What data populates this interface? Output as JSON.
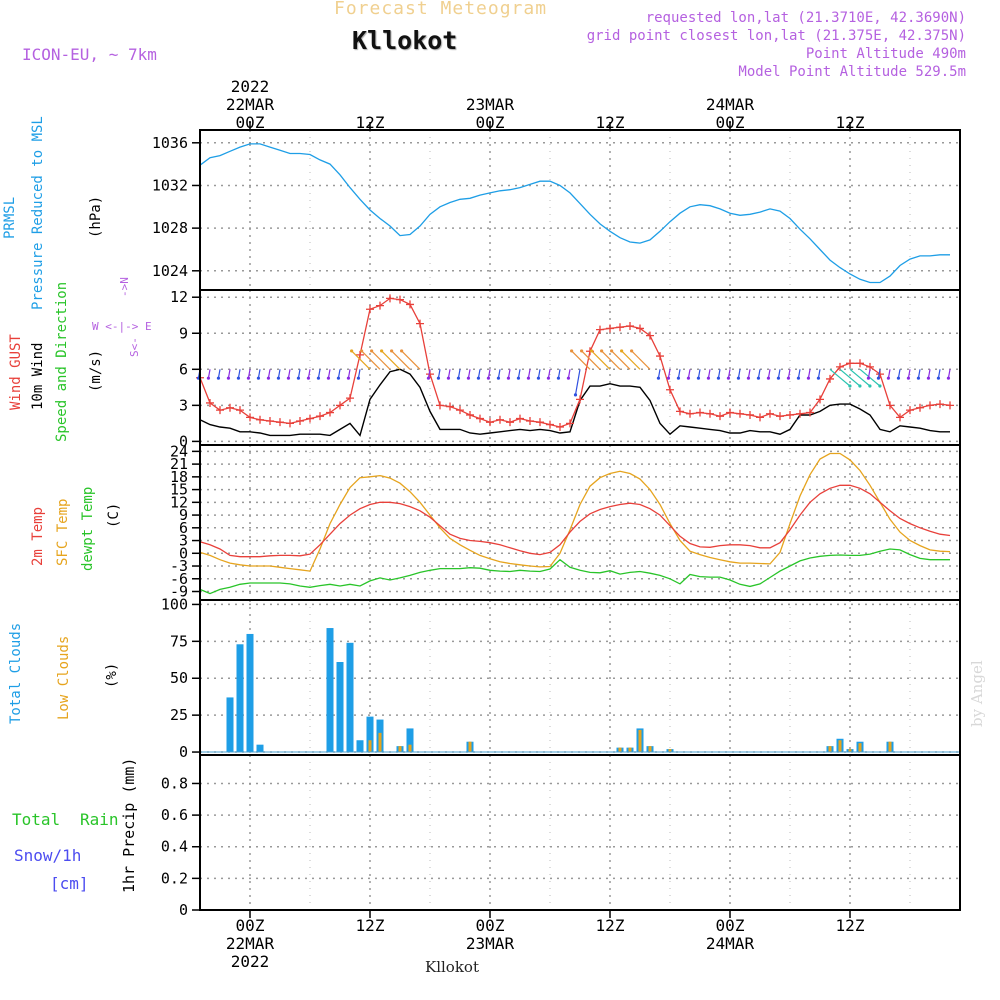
{
  "header": {
    "top_title": "Forecast Meteogram",
    "location": "Kllokot",
    "model": "ICON-EU, ~ 7km",
    "requested": "requested lon,lat (21.3710E, 42.3690N)",
    "grid_point": "grid point closest lon,lat (21.375E, 42.375N)",
    "point_altitude": "Point Altitude 490m",
    "model_altitude": "Model Point Altitude 529.5m",
    "bottom_location": "Kllokot",
    "credit": "by Angel"
  },
  "time_axis": {
    "top_labels": [
      {
        "hour": 0,
        "lines": [
          "2022",
          "22MAR",
          "00Z"
        ]
      },
      {
        "hour": 12,
        "lines": [
          "12Z"
        ]
      },
      {
        "hour": 24,
        "lines": [
          "23MAR",
          "00Z"
        ]
      },
      {
        "hour": 36,
        "lines": [
          "12Z"
        ]
      },
      {
        "hour": 48,
        "lines": [
          "24MAR",
          "00Z"
        ]
      },
      {
        "hour": 60,
        "lines": [
          "12Z"
        ]
      }
    ],
    "bottom_labels": [
      {
        "hour": 0,
        "lines": [
          "00Z",
          "22MAR",
          "2022"
        ]
      },
      {
        "hour": 12,
        "lines": [
          "12Z"
        ]
      },
      {
        "hour": 24,
        "lines": [
          "00Z",
          "23MAR"
        ]
      },
      {
        "hour": 36,
        "lines": [
          "12Z"
        ]
      },
      {
        "hour": 48,
        "lines": [
          "00Z",
          "24MAR"
        ]
      },
      {
        "hour": 60,
        "lines": [
          "12Z"
        ]
      }
    ],
    "range_hours": [
      -5,
      71
    ]
  },
  "panels": {
    "pressure": {
      "label_line1": "PRMSL",
      "label_line2": "Pressure Reduced to MSL",
      "unit": "(hPa)",
      "ticks": [
        "1024",
        "1028",
        "1032",
        "1036"
      ]
    },
    "wind": {
      "label_gust": "Wind GUST",
      "label_10m": "10m Wind",
      "label_speed": "Speed and Direction",
      "unit": "(m/s)",
      "ticks": [
        "0",
        "3",
        "6",
        "9",
        "12"
      ],
      "compass_n": "N",
      "compass_s": "S",
      "compass_w": "W",
      "compass_e": "E",
      "compass_mid": "<-|->",
      "compass_top": "->",
      "compass_bottom": "<-"
    },
    "temperature": {
      "label_2m": "2m Temp",
      "label_sfc": "SFC Temp",
      "label_dewpt": "dewpt Temp",
      "unit": "(C)",
      "ticks": [
        "-9",
        "-6",
        "-3",
        "0",
        "3",
        "6",
        "9",
        "12",
        "15",
        "18",
        "21",
        "24"
      ]
    },
    "clouds": {
      "label_total": "Total Clouds",
      "label_low": "Low Clouds",
      "unit": "(%)",
      "ticks": [
        "0",
        "25",
        "50",
        "75",
        "100"
      ]
    },
    "precip": {
      "label_total": "Total",
      "label_rain": "Rain",
      "label_snow": "Snow/1h",
      "label_snow_unit": "[cm]",
      "unit": "1hr Precip (mm)",
      "ticks": [
        "0",
        "0.2",
        "0.4",
        "0.6",
        "0.8"
      ]
    }
  },
  "colors": {
    "pressure": "#1e9ee6",
    "gust": "#e8403a",
    "wind10m": "#000000",
    "temp2m": "#e8403a",
    "sfc": "#e6a41e",
    "dewpt": "#29c429",
    "total_clouds": "#1e9ee6",
    "low_clouds": "#e6a41e",
    "title": "#f0d090",
    "meta": "#b561e0",
    "snow": "#4c4cf0"
  },
  "chart_data": [
    {
      "type": "line",
      "title": "PRMSL Pressure Reduced to MSL",
      "ylabel": "hPa",
      "xlabel": "forecast hour from 22MAR 00Z",
      "ylim": [
        1022.2,
        1037.2
      ],
      "x": [
        -5,
        -4,
        -3,
        -2,
        -1,
        0,
        1,
        2,
        3,
        4,
        5,
        6,
        7,
        8,
        9,
        10,
        11,
        12,
        13,
        14,
        15,
        16,
        17,
        18,
        19,
        20,
        21,
        22,
        23,
        24,
        25,
        26,
        27,
        28,
        29,
        30,
        31,
        32,
        33,
        34,
        35,
        36,
        37,
        38,
        39,
        40,
        41,
        42,
        43,
        44,
        45,
        46,
        47,
        48,
        49,
        50,
        51,
        52,
        53,
        54,
        55,
        56,
        57,
        58,
        59,
        60,
        61,
        62,
        63,
        64,
        65,
        66,
        67,
        68,
        69,
        70
      ],
      "series": [
        {
          "name": "PRMSL",
          "values": [
            1033.9,
            1034.6,
            1034.8,
            1035.2,
            1035.6,
            1035.9,
            1035.9,
            1035.6,
            1035.3,
            1035.0,
            1035.0,
            1034.9,
            1034.4,
            1034.0,
            1033.0,
            1031.8,
            1030.7,
            1029.7,
            1028.9,
            1028.2,
            1027.3,
            1027.4,
            1028.2,
            1029.3,
            1030.0,
            1030.4,
            1030.7,
            1030.8,
            1031.1,
            1031.3,
            1031.5,
            1031.6,
            1031.8,
            1032.1,
            1032.4,
            1032.4,
            1032.0,
            1031.3,
            1030.3,
            1029.3,
            1028.4,
            1027.7,
            1027.1,
            1026.7,
            1026.6,
            1026.9,
            1027.7,
            1028.6,
            1029.4,
            1030.0,
            1030.2,
            1030.1,
            1029.8,
            1029.4,
            1029.2,
            1029.3,
            1029.5,
            1029.8,
            1029.6,
            1028.9,
            1027.9,
            1027.0,
            1026.0,
            1025.0,
            1024.3,
            1023.7,
            1023.2,
            1022.9,
            1022.9,
            1023.5,
            1024.5,
            1025.1,
            1025.4,
            1025.4,
            1025.5,
            1025.5
          ]
        }
      ]
    },
    {
      "type": "line",
      "title": "Wind GUST / 10m Wind Speed and Direction",
      "ylabel": "m/s",
      "ylim": [
        -0.3,
        12.6
      ],
      "x": [
        -5,
        -4,
        -3,
        -2,
        -1,
        0,
        1,
        2,
        3,
        4,
        5,
        6,
        7,
        8,
        9,
        10,
        11,
        12,
        13,
        14,
        15,
        16,
        17,
        18,
        19,
        20,
        21,
        22,
        23,
        24,
        25,
        26,
        27,
        28,
        29,
        30,
        31,
        32,
        33,
        34,
        35,
        36,
        37,
        38,
        39,
        40,
        41,
        42,
        43,
        44,
        45,
        46,
        47,
        48,
        49,
        50,
        51,
        52,
        53,
        54,
        55,
        56,
        57,
        58,
        59,
        60,
        61,
        62,
        63,
        64,
        65,
        66,
        67,
        68,
        69,
        70
      ],
      "series": [
        {
          "name": "Wind GUST",
          "values": [
            5.3,
            3.2,
            2.6,
            2.8,
            2.6,
            2.0,
            1.8,
            1.7,
            1.6,
            1.5,
            1.7,
            1.9,
            2.1,
            2.4,
            3.0,
            3.6,
            7.2,
            11.0,
            11.3,
            11.9,
            11.8,
            11.4,
            9.8,
            5.6,
            3.0,
            2.9,
            2.6,
            2.2,
            1.9,
            1.6,
            1.8,
            1.6,
            1.9,
            1.7,
            1.6,
            1.4,
            1.2,
            1.5,
            3.5,
            7.5,
            9.3,
            9.4,
            9.5,
            9.6,
            9.4,
            8.8,
            7.1,
            4.3,
            2.5,
            2.3,
            2.4,
            2.3,
            2.1,
            2.4,
            2.3,
            2.2,
            2.0,
            2.3,
            2.1,
            2.2,
            2.3,
            2.4,
            3.5,
            5.2,
            6.2,
            6.5,
            6.5,
            6.2,
            5.6,
            3.0,
            2.0,
            2.6,
            2.8,
            3.0,
            3.1,
            3.0
          ]
        },
        {
          "name": "10m Wind",
          "values": [
            1.8,
            1.4,
            1.2,
            1.1,
            0.8,
            0.8,
            0.7,
            0.5,
            0.5,
            0.5,
            0.6,
            0.6,
            0.6,
            0.5,
            1.0,
            1.5,
            0.5,
            3.5,
            4.7,
            5.8,
            6.0,
            5.6,
            4.5,
            2.5,
            1.0,
            1.0,
            1.0,
            0.7,
            0.6,
            0.7,
            0.8,
            0.9,
            1.0,
            0.9,
            1.0,
            0.9,
            0.7,
            0.8,
            3.4,
            4.6,
            4.6,
            4.8,
            4.6,
            4.6,
            4.5,
            3.4,
            1.5,
            0.6,
            1.3,
            1.2,
            1.1,
            1.0,
            0.9,
            0.7,
            0.7,
            0.9,
            0.8,
            0.8,
            0.6,
            1.0,
            2.2,
            2.2,
            2.5,
            3.0,
            3.1,
            3.1,
            2.7,
            2.2,
            1.0,
            0.8,
            1.3,
            1.2,
            1.1,
            0.9,
            0.8,
            0.8
          ]
        }
      ]
    },
    {
      "type": "line",
      "title": "2m Temp / SFC Temp / dewpt Temp",
      "ylabel": "C",
      "ylim": [
        -11,
        25.5
      ],
      "x": [
        -5,
        -4,
        -3,
        -2,
        -1,
        0,
        1,
        2,
        3,
        4,
        5,
        6,
        7,
        8,
        9,
        10,
        11,
        12,
        13,
        14,
        15,
        16,
        17,
        18,
        19,
        20,
        21,
        22,
        23,
        24,
        25,
        26,
        27,
        28,
        29,
        30,
        31,
        32,
        33,
        34,
        35,
        36,
        37,
        38,
        39,
        40,
        41,
        42,
        43,
        44,
        45,
        46,
        47,
        48,
        49,
        50,
        51,
        52,
        53,
        54,
        55,
        56,
        57,
        58,
        59,
        60,
        61,
        62,
        63,
        64,
        65,
        66,
        67,
        68,
        69,
        70
      ],
      "series": [
        {
          "name": "2m Temp",
          "values": [
            2.7,
            2.0,
            1.0,
            -0.5,
            -0.8,
            -0.8,
            -0.8,
            -0.6,
            -0.5,
            -0.5,
            -0.6,
            -0.2,
            2.0,
            4.5,
            7.0,
            9.0,
            10.5,
            11.5,
            12.0,
            12.0,
            11.7,
            11.0,
            10.0,
            8.5,
            6.5,
            4.5,
            3.5,
            3.0,
            2.8,
            2.5,
            2.0,
            1.3,
            0.6,
            0.0,
            -0.3,
            0.2,
            2.0,
            5.0,
            7.5,
            9.3,
            10.3,
            11.0,
            11.5,
            11.8,
            11.5,
            10.5,
            9.0,
            6.5,
            4.0,
            2.3,
            1.5,
            1.4,
            1.8,
            2.0,
            2.0,
            1.8,
            1.3,
            1.3,
            2.5,
            5.5,
            9.0,
            12.0,
            14.0,
            15.3,
            16.0,
            16.0,
            15.3,
            14.0,
            12.0,
            10.0,
            8.2,
            7.0,
            6.0,
            5.2,
            4.5,
            4.2
          ]
        },
        {
          "name": "SFC Temp",
          "values": [
            0.2,
            -0.5,
            -1.5,
            -2.3,
            -2.7,
            -3.0,
            -3.0,
            -3.0,
            -3.3,
            -3.6,
            -3.9,
            -4.2,
            1.0,
            7.0,
            11.5,
            15.5,
            17.8,
            18.0,
            18.3,
            17.7,
            16.5,
            14.5,
            12.0,
            9.0,
            6.0,
            3.5,
            2.0,
            0.7,
            -0.5,
            -1.3,
            -2.0,
            -2.4,
            -2.7,
            -3.0,
            -3.2,
            -3.1,
            0.0,
            5.5,
            11.5,
            15.8,
            17.8,
            18.8,
            19.3,
            18.8,
            17.5,
            15.0,
            11.5,
            7.0,
            3.0,
            0.5,
            -0.3,
            -1.0,
            -1.5,
            -2.0,
            -2.3,
            -2.3,
            -2.4,
            -2.5,
            0.2,
            7.0,
            13.5,
            18.5,
            22.2,
            23.5,
            23.5,
            22.0,
            19.5,
            16.0,
            12.0,
            8.0,
            5.0,
            3.0,
            1.8,
            0.8,
            0.5,
            0.4
          ]
        },
        {
          "name": "dewpt Temp",
          "values": [
            -8.5,
            -9.5,
            -8.5,
            -8.0,
            -7.3,
            -7.0,
            -7.0,
            -7.0,
            -7.0,
            -7.2,
            -7.7,
            -8.0,
            -7.6,
            -7.3,
            -7.7,
            -7.3,
            -7.7,
            -6.5,
            -5.8,
            -6.3,
            -5.8,
            -5.2,
            -4.5,
            -4.0,
            -3.6,
            -3.6,
            -3.6,
            -3.4,
            -3.5,
            -4.0,
            -4.2,
            -4.3,
            -4.0,
            -4.2,
            -4.3,
            -3.7,
            -1.5,
            -3.3,
            -4.0,
            -4.5,
            -4.6,
            -4.1,
            -4.9,
            -4.5,
            -4.3,
            -4.7,
            -5.2,
            -6.0,
            -7.2,
            -5.0,
            -5.5,
            -5.6,
            -5.6,
            -6.3,
            -7.3,
            -7.8,
            -7.2,
            -5.7,
            -4.2,
            -3.0,
            -1.8,
            -1.1,
            -0.7,
            -0.5,
            -0.4,
            -0.5,
            -0.5,
            -0.2,
            0.5,
            1.0,
            0.8,
            -0.3,
            -1.2,
            -1.5,
            -1.5,
            -1.5
          ]
        }
      ]
    },
    {
      "type": "bar",
      "title": "Total Clouds / Low Clouds",
      "ylabel": "%",
      "ylim": [
        -2,
        103
      ],
      "x": [
        -2,
        -1,
        0,
        1,
        3,
        8,
        9,
        10,
        11,
        12,
        13,
        15,
        16,
        22,
        37,
        38,
        39,
        40,
        42,
        58,
        59,
        60,
        61,
        62,
        64
      ],
      "series": [
        {
          "name": "Total Clouds",
          "values": [
            37,
            73,
            80,
            5,
            0,
            84,
            61,
            74,
            8,
            24,
            22,
            4,
            16,
            7,
            3,
            3,
            16,
            4,
            2,
            4,
            9,
            2,
            7,
            0,
            7
          ]
        },
        {
          "name": "Low Clouds",
          "values": [
            0,
            0,
            0,
            0,
            0,
            0,
            0,
            0,
            0,
            8,
            13,
            4,
            5,
            7,
            3,
            3,
            15,
            4,
            2,
            4,
            8,
            2,
            6,
            0,
            7
          ]
        }
      ]
    },
    {
      "type": "bar",
      "title": "1hr Precip",
      "ylabel": "mm",
      "ylim": [
        0,
        0.98
      ],
      "categories": [
        "Total Rain",
        "Snow/1h"
      ],
      "values": [
        0,
        0
      ]
    }
  ]
}
